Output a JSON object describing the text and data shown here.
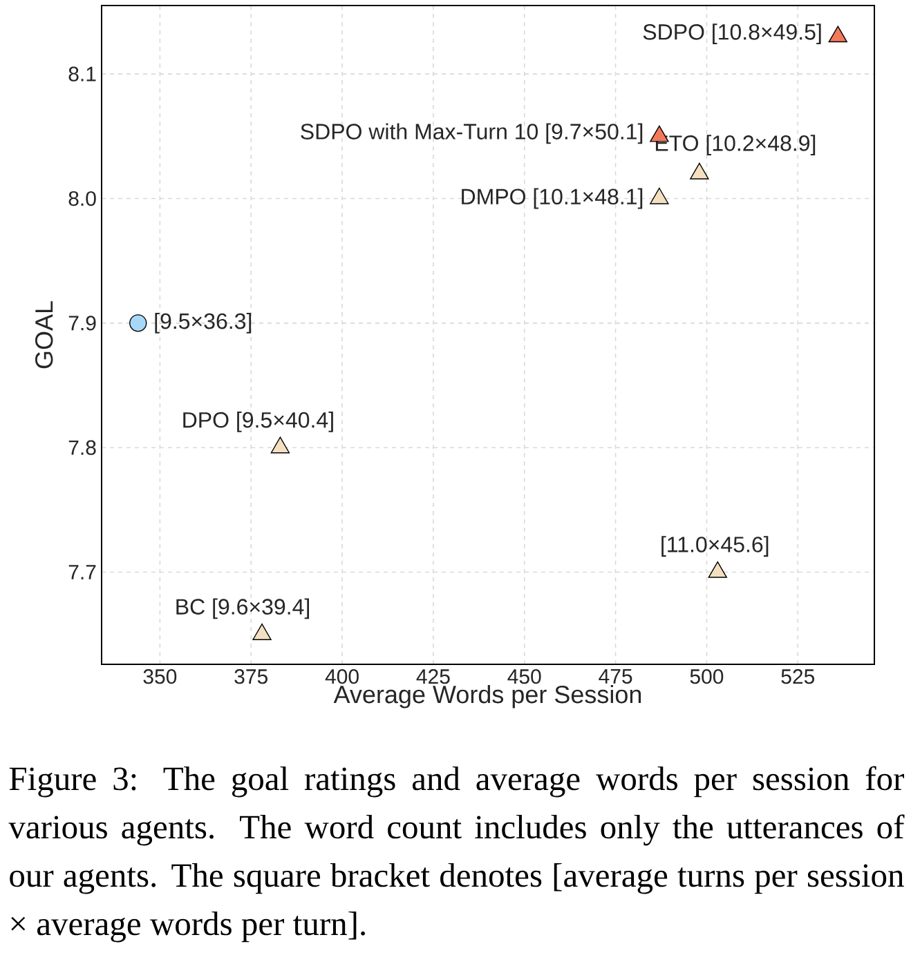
{
  "chart_data": {
    "type": "scatter",
    "xlabel": "Average Words per Session",
    "ylabel": "GOAL",
    "xlim": [
      334,
      546
    ],
    "ylim": [
      7.626,
      8.155
    ],
    "xticks": [
      350,
      375,
      400,
      425,
      450,
      475,
      500,
      525
    ],
    "yticks": [
      {
        "value": 7.7,
        "label": "7.7"
      },
      {
        "value": 7.8,
        "label": "7.8"
      },
      {
        "value": 7.9,
        "label": "7.9"
      },
      {
        "value": 8.0,
        "label": "8.0"
      },
      {
        "value": 8.1,
        "label": "8.1"
      }
    ],
    "grid": true,
    "series": [
      {
        "color": "#a8d8f8",
        "marker": "circle",
        "x": [
          344
        ],
        "values": [
          7.9
        ]
      },
      {
        "color": "#f4e0c0",
        "marker": "triangle",
        "x": [
          498,
          487,
          383,
          503,
          378
        ],
        "values": [
          8.02,
          8.0,
          7.8,
          7.7,
          7.65
        ]
      },
      {
        "color": "#f4795b",
        "marker": "triangle",
        "x": [
          536,
          487
        ],
        "values": [
          8.13,
          8.05
        ]
      }
    ],
    "annotations": [
      {
        "text": "SDPO [10.8×49.5]",
        "x": 536,
        "y": 8.13
      },
      {
        "text": "SDPO with Max-Turn 10 [9.7×50.1]",
        "x": 487,
        "y": 8.05
      },
      {
        "text": "ETO [10.2×48.9]",
        "x": 498,
        "y": 8.02
      },
      {
        "text": "DMPO [10.1×48.1]",
        "x": 487,
        "y": 8.0
      },
      {
        "text": "[9.5×36.3]",
        "x": 344,
        "y": 7.9
      },
      {
        "text": "DPO [9.5×40.4]",
        "x": 383,
        "y": 7.8
      },
      {
        "text": "[11.0×45.6]",
        "x": 503,
        "y": 7.7
      },
      {
        "text": "BC [9.6×39.4]",
        "x": 378,
        "y": 7.65
      },
      "Figure 3: The goal ratings and average words per session for various agents. The word count includes only the utterances of our agents. The square bracket denotes [average turns per session × average words per turn]."
    ]
  }
}
